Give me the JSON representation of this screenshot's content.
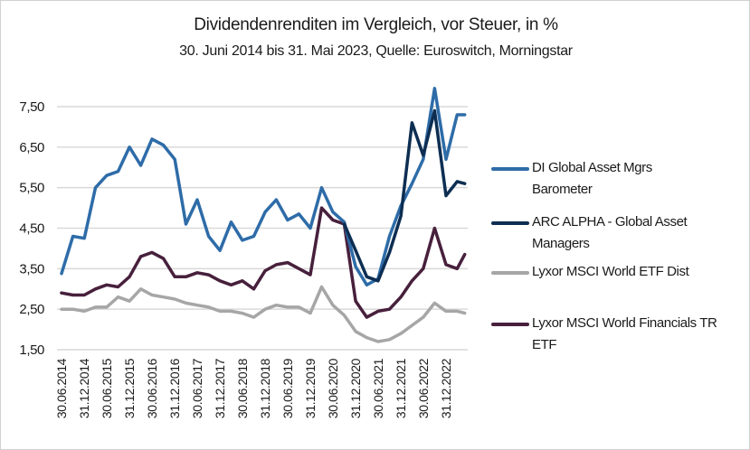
{
  "chart_data": {
    "type": "line",
    "title": "Dividendenrenditen im Vergleich, vor Steuer, in %",
    "subtitle": "30. Juni 2014 bis 31. Mai 2023, Quelle: Euroswitch, Morningstar",
    "xlabel": "",
    "ylabel": "",
    "ylim": [
      1.5,
      8.0
    ],
    "y_ticks": [
      "1,50",
      "2,50",
      "3,50",
      "4,50",
      "5,50",
      "6,50",
      "7,50"
    ],
    "y_tick_values": [
      1.5,
      2.5,
      3.5,
      4.5,
      5.5,
      6.5,
      7.5
    ],
    "x_ticks": [
      "30.06.2014",
      "31.12.2014",
      "30.06.2015",
      "31.12.2015",
      "30.06.2016",
      "31.12.2016",
      "30.06.2017",
      "31.12.2017",
      "30.06.2018",
      "31.12.2018",
      "30.06.2019",
      "31.12.2019",
      "30.06.2020",
      "31.12.2020",
      "30.06.2021",
      "31.12.2021",
      "30.06.2022",
      "31.12.2022"
    ],
    "grid": true,
    "legend": "right",
    "x": [
      "2014-06-30",
      "2014-09-30",
      "2014-12-31",
      "2015-03-31",
      "2015-06-30",
      "2015-09-30",
      "2015-12-31",
      "2016-03-31",
      "2016-06-30",
      "2016-09-30",
      "2016-12-31",
      "2017-03-31",
      "2017-06-30",
      "2017-09-30",
      "2017-12-31",
      "2018-03-31",
      "2018-06-30",
      "2018-09-30",
      "2018-12-31",
      "2019-03-31",
      "2019-06-30",
      "2019-09-30",
      "2019-12-31",
      "2020-03-31",
      "2020-06-30",
      "2020-09-30",
      "2020-12-31",
      "2021-03-31",
      "2021-06-30",
      "2021-09-30",
      "2021-12-31",
      "2022-03-31",
      "2022-06-30",
      "2022-09-30",
      "2022-12-31",
      "2023-03-31",
      "2023-05-31"
    ],
    "series": [
      {
        "name": "DI Global Asset Mgrs Barometer",
        "color": "#2e6ca8",
        "values": [
          3.38,
          4.3,
          4.25,
          5.5,
          5.8,
          5.9,
          6.5,
          6.05,
          6.7,
          6.55,
          6.2,
          4.6,
          5.2,
          4.3,
          3.95,
          4.65,
          4.2,
          4.3,
          4.9,
          5.2,
          4.7,
          4.85,
          4.5,
          5.5,
          4.9,
          4.65,
          3.55,
          3.1,
          3.25,
          4.3,
          5.05,
          5.6,
          6.2,
          7.95,
          6.2,
          7.3,
          7.3
        ]
      },
      {
        "name": "ARC ALPHA - Global Asset Managers",
        "color": "#0d2e52",
        "values": [
          null,
          null,
          null,
          null,
          null,
          null,
          null,
          null,
          null,
          null,
          null,
          null,
          null,
          null,
          null,
          null,
          null,
          null,
          null,
          null,
          null,
          null,
          null,
          null,
          null,
          4.6,
          3.95,
          3.3,
          3.2,
          3.9,
          4.8,
          7.1,
          6.3,
          7.4,
          5.3,
          5.65,
          5.6
        ]
      },
      {
        "name": "Lyxor MSCI World ETF Dist",
        "color": "#a6a6a6",
        "values": [
          2.5,
          2.5,
          2.45,
          2.55,
          2.55,
          2.8,
          2.7,
          3.0,
          2.85,
          2.8,
          2.75,
          2.65,
          2.6,
          2.55,
          2.45,
          2.45,
          2.4,
          2.3,
          2.5,
          2.6,
          2.55,
          2.55,
          2.4,
          3.05,
          2.6,
          2.35,
          1.95,
          1.8,
          1.7,
          1.75,
          1.9,
          2.1,
          2.3,
          2.65,
          2.45,
          2.45,
          2.4
        ]
      },
      {
        "name": "Lyxor MSCI World Financials TR ETF",
        "color": "#47203c",
        "values": [
          2.9,
          2.85,
          2.85,
          3.0,
          3.1,
          3.05,
          3.3,
          3.8,
          3.9,
          3.75,
          3.3,
          3.3,
          3.4,
          3.35,
          3.2,
          3.1,
          3.2,
          3.0,
          3.45,
          3.6,
          3.65,
          3.5,
          3.35,
          5.0,
          4.7,
          4.6,
          2.7,
          2.3,
          2.45,
          2.5,
          2.8,
          3.2,
          3.5,
          4.5,
          3.6,
          3.5,
          3.85
        ]
      }
    ]
  }
}
